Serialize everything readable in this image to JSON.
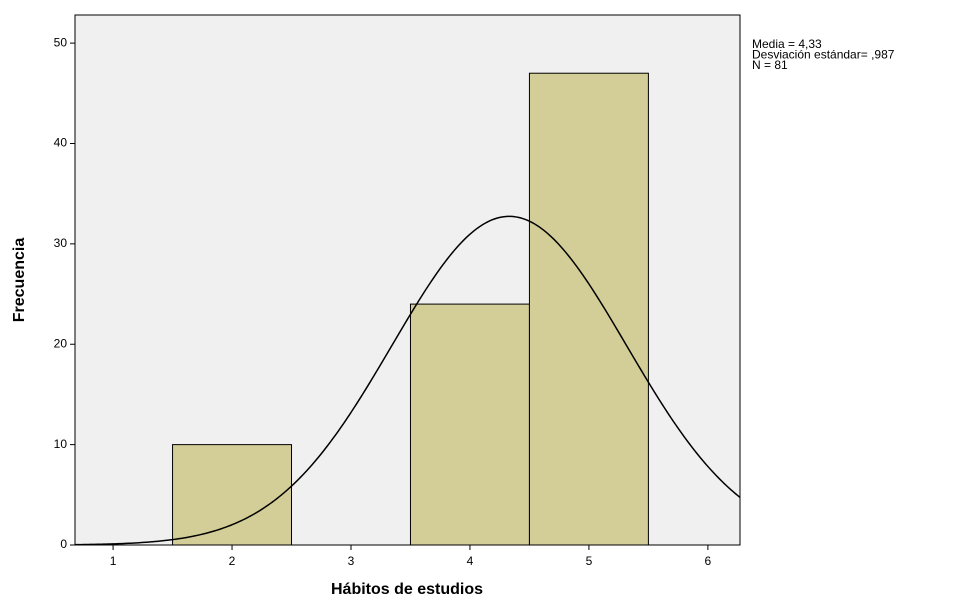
{
  "chart_data": {
    "type": "histogram",
    "xlabel": "Hábitos de estudios",
    "ylabel": "Frecuencia",
    "bins": [
      1.5,
      2.5,
      3.5,
      4.5,
      5.5
    ],
    "values": [
      10,
      0,
      24,
      47
    ],
    "color": "#d3ce97",
    "xlim": [
      0.68,
      6.27
    ],
    "xticks": [
      1,
      2,
      3,
      4,
      5,
      6
    ],
    "ylim": [
      0,
      52.8
    ],
    "yticks": [
      0,
      10,
      20,
      30,
      40,
      50
    ],
    "annotations": [
      "Media = 4,33",
      "Desviación estándar= ,987",
      "N = 81"
    ],
    "normal_curve": {
      "mean": 4.33,
      "sd": 0.987,
      "n": 81
    }
  }
}
